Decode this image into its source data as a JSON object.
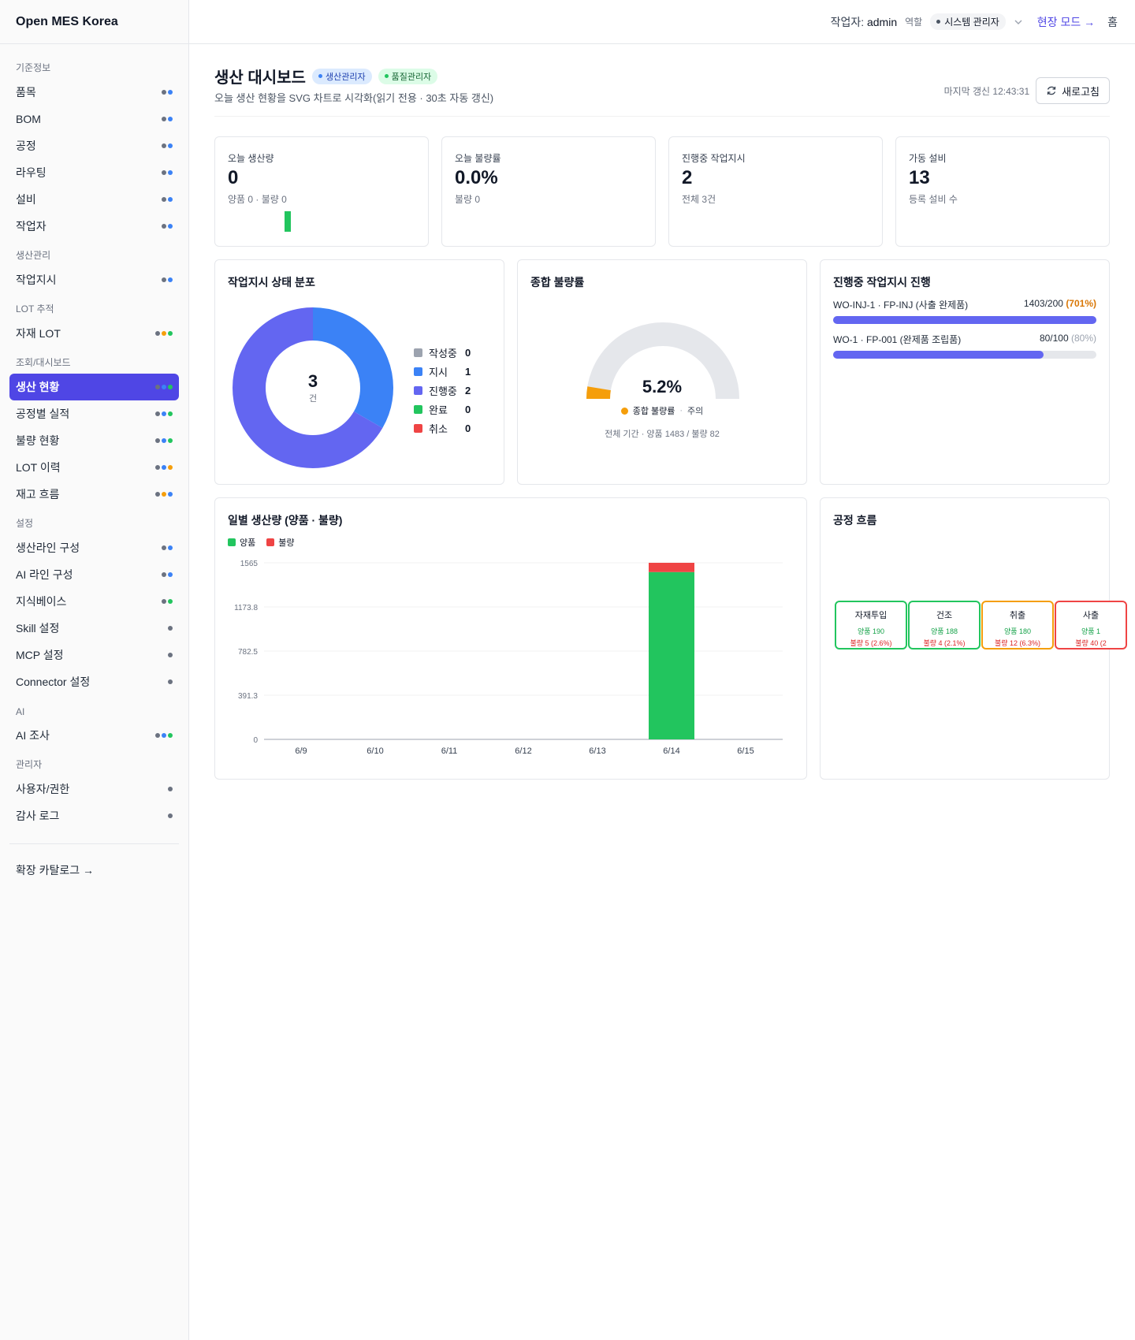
{
  "app": {
    "title": "Open MES Korea"
  },
  "sidebar": {
    "groups": [
      {
        "title": "기준정보",
        "items": [
          {
            "label": "품목",
            "dots": [
              "#6b7280",
              "#3b82f6"
            ]
          },
          {
            "label": "BOM",
            "dots": [
              "#6b7280",
              "#3b82f6"
            ]
          },
          {
            "label": "공정",
            "dots": [
              "#6b7280",
              "#3b82f6"
            ]
          },
          {
            "label": "라우팅",
            "dots": [
              "#6b7280",
              "#3b82f6"
            ]
          },
          {
            "label": "설비",
            "dots": [
              "#6b7280",
              "#3b82f6"
            ]
          },
          {
            "label": "작업자",
            "dots": [
              "#6b7280",
              "#3b82f6"
            ]
          }
        ]
      },
      {
        "title": "생산관리",
        "items": [
          {
            "label": "작업지시",
            "dots": [
              "#6b7280",
              "#3b82f6"
            ]
          }
        ]
      },
      {
        "title": "LOT 추적",
        "items": [
          {
            "label": "자재 LOT",
            "dots": [
              "#6b7280",
              "#f59e0b",
              "#22c55e"
            ]
          }
        ]
      },
      {
        "title": "조회/대시보드",
        "items": [
          {
            "label": "생산 현황",
            "dots": [
              "#6b7280",
              "#3b82f6",
              "#22c55e"
            ],
            "active": true
          },
          {
            "label": "공정별 실적",
            "dots": [
              "#6b7280",
              "#3b82f6",
              "#22c55e"
            ]
          },
          {
            "label": "불량 현황",
            "dots": [
              "#6b7280",
              "#3b82f6",
              "#22c55e"
            ]
          },
          {
            "label": "LOT 이력",
            "dots": [
              "#6b7280",
              "#3b82f6",
              "#f59e0b"
            ]
          },
          {
            "label": "재고 흐름",
            "dots": [
              "#6b7280",
              "#f59e0b",
              "#3b82f6"
            ]
          }
        ]
      },
      {
        "title": "설정",
        "items": [
          {
            "label": "생산라인 구성",
            "dots": [
              "#6b7280",
              "#3b82f6"
            ]
          },
          {
            "label": "AI 라인 구성",
            "dots": [
              "#6b7280",
              "#3b82f6"
            ]
          },
          {
            "label": "지식베이스",
            "dots": [
              "#6b7280",
              "#22c55e"
            ]
          },
          {
            "label": "Skill 설정",
            "dots": [
              "#6b7280"
            ]
          },
          {
            "label": "MCP 설정",
            "dots": [
              "#6b7280"
            ]
          },
          {
            "label": "Connector 설정",
            "dots": [
              "#6b7280"
            ]
          }
        ]
      },
      {
        "title": "AI",
        "items": [
          {
            "label": "AI 조사",
            "dots": [
              "#6b7280",
              "#3b82f6",
              "#22c55e"
            ]
          }
        ]
      },
      {
        "title": "관리자",
        "items": [
          {
            "label": "사용자/권한",
            "dots": [
              "#6b7280"
            ]
          },
          {
            "label": "감사 로그",
            "dots": [
              "#6b7280"
            ]
          }
        ]
      }
    ],
    "catalog_link": "확장 카탈로그 →"
  },
  "topbar": {
    "worker_label": "작업자:",
    "worker_name": "admin",
    "role_label": "역할",
    "role_value": "시스템 관리자",
    "field_mode": "현장 모드 →",
    "home": "홈"
  },
  "header": {
    "title": "생산 대시보드",
    "badges": [
      "생산관리자",
      "품질관리자"
    ],
    "subtitle": "오늘 생산 현황을 SVG 차트로 시각화(읽기 전용 · 30초 자동 갱신)",
    "last_update": "마지막 갱신 12:43:31",
    "refresh_label": "새로고침"
  },
  "kpis": [
    {
      "label": "오늘 생산량",
      "value": "0",
      "sub": "양품 0 · 불량 0"
    },
    {
      "label": "오늘 불량률",
      "value": "0.0%",
      "sub": "불량 0"
    },
    {
      "label": "진행중 작업지시",
      "value": "2",
      "sub": "전체 3건"
    },
    {
      "label": "가동 설비",
      "value": "13",
      "sub": "등록 설비 수"
    }
  ],
  "status_card": {
    "title": "작업지시 상태 분포",
    "center_value": "3",
    "center_unit": "건",
    "legend": [
      {
        "label": "작성중",
        "count": 0,
        "color": "#9ca3af"
      },
      {
        "label": "지시",
        "count": 1,
        "color": "#3b82f6"
      },
      {
        "label": "진행중",
        "count": 2,
        "color": "#6366f1"
      },
      {
        "label": "완료",
        "count": 0,
        "color": "#22c55e"
      },
      {
        "label": "취소",
        "count": 0,
        "color": "#ef4444"
      }
    ]
  },
  "defect_card": {
    "title": "종합 불량률",
    "rate": 5.2,
    "rate_text": "5.2%",
    "status_label": "종합 불량률",
    "status_level": "주의",
    "status_color": "#f59e0b",
    "footer": "전체 기간 · 양품 1483 / 불량 82"
  },
  "wo_card": {
    "title": "진행중 작업지시 진행",
    "items": [
      {
        "name": "WO-INJ-1 · FP-INJ (사출 완제품)",
        "qty": "1403/200",
        "pct_text": "(701%)",
        "pct": 1.0,
        "pct_color": "#d97706"
      },
      {
        "name": "WO-1 · FP-001 (완제품 조립품)",
        "qty": "80/100",
        "pct_text": "(80%)",
        "pct": 0.8,
        "pct_color": "#9ca3af"
      }
    ]
  },
  "chart_data": {
    "type": "bar",
    "title": "일별 생산량 (양품 · 불량)",
    "categories": [
      "6/9",
      "6/10",
      "6/11",
      "6/12",
      "6/13",
      "6/14",
      "6/15"
    ],
    "series": [
      {
        "name": "양품",
        "color": "#22c55e",
        "values": [
          0,
          0,
          0,
          0,
          0,
          1483,
          0
        ]
      },
      {
        "name": "불량",
        "color": "#ef4444",
        "values": [
          0,
          0,
          0,
          0,
          0,
          82,
          0
        ]
      }
    ],
    "stacked": true,
    "yticks": [
      "0",
      "391.3",
      "782.5",
      "1173.8",
      "1565"
    ],
    "ylim": [
      0,
      1565
    ],
    "legend": "top-left",
    "grid": true
  },
  "flow_card": {
    "title": "공정 흐름",
    "steps": [
      {
        "name": "자재투입",
        "good": "양품 190",
        "bad": "불량 5 (2.6%)",
        "color": "#22c55e"
      },
      {
        "name": "건조",
        "good": "양품 188",
        "bad": "불량 4 (2.1%)",
        "color": "#22c55e"
      },
      {
        "name": "취출",
        "good": "양품 180",
        "bad": "불량 12 (6.3%)",
        "color": "#f59e0b"
      },
      {
        "name": "사출",
        "good": "양품 1",
        "bad": "불량 40 (2",
        "color": "#ef4444"
      }
    ]
  }
}
